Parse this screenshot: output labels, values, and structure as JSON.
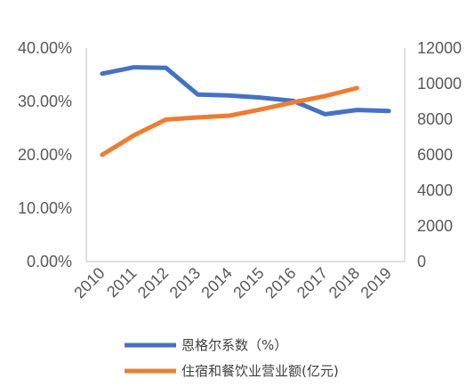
{
  "chart_data": {
    "type": "line",
    "categories": [
      "2010",
      "2011",
      "2012",
      "2013",
      "2014",
      "2015",
      "2016",
      "2017",
      "2018",
      "2019"
    ],
    "y_left": {
      "ylim": [
        0,
        0.4
      ],
      "ticks": [
        "0.00%",
        "10.00%",
        "20.00%",
        "30.00%",
        "40.00%"
      ]
    },
    "y_right": {
      "ylim": [
        0,
        12000
      ],
      "ticks": [
        "0",
        "2000",
        "4000",
        "6000",
        "8000",
        "10000",
        "12000"
      ]
    },
    "series": [
      {
        "name": "恩格尔系数（%）",
        "axis": "left",
        "color": "#4472C4",
        "values": [
          0.352,
          0.364,
          0.363,
          0.313,
          0.311,
          0.307,
          0.301,
          0.276,
          0.284,
          0.282
        ]
      },
      {
        "name": "住宿和餐饮业营业额(亿元)",
        "axis": "right",
        "color": "#ED7D31",
        "values": [
          6000,
          7100,
          7980,
          8100,
          8200,
          8560,
          8950,
          9300,
          9750,
          null
        ]
      }
    ],
    "grid": false,
    "legend": "bottom"
  }
}
